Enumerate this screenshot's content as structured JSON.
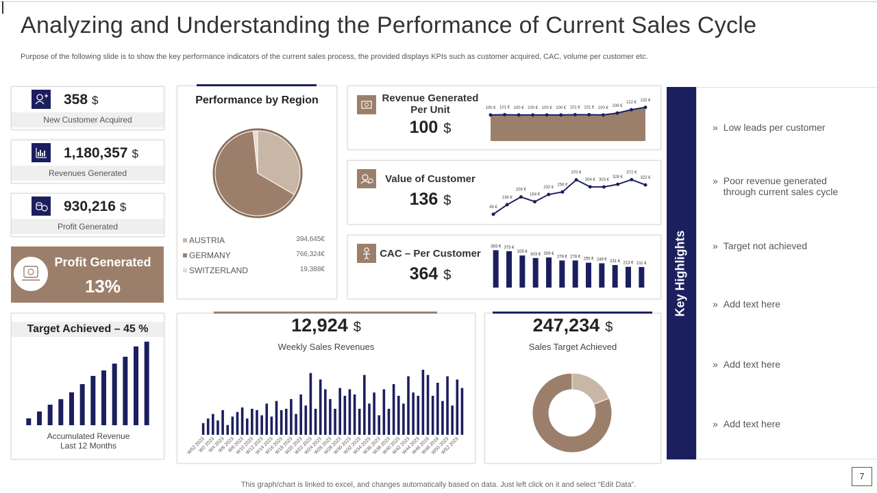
{
  "header": {
    "title": "Analyzing and Understanding the Performance of Current Sales Cycle",
    "subtitle": "Purpose of the following slide is to show the key performance indicators of the current sales process, the provided displays KPIs such as customer acquired, CAC, volume per customer etc."
  },
  "kpis": [
    {
      "value": "358",
      "unit": "$",
      "label": "New Customer Acquired"
    },
    {
      "value": "1,180,357",
      "unit": "$",
      "label": "Revenues  Generated"
    },
    {
      "value": "930,216",
      "unit": "$",
      "label": "Profit  Generated"
    }
  ],
  "profit_box": {
    "title": "Profit Generated",
    "value": "13%"
  },
  "target": {
    "title": "Target Achieved – 45 %",
    "type": "bar",
    "color": "#1b1f5e",
    "values": [
      10,
      20,
      30,
      38,
      48,
      60,
      72,
      80,
      90,
      100,
      115,
      122
    ],
    "ylim": [
      0,
      125
    ],
    "label": "Accumulated Revenue Last 12 Months"
  },
  "region": {
    "title": "Performance by Region",
    "type": "pie",
    "categories": [
      "AUSTRIA",
      "GERMANY",
      "SWITZERLAND"
    ],
    "values": [
      394645,
      766324,
      19388
    ],
    "value_labels": [
      "394,645€",
      "766,324€",
      "19,388€"
    ],
    "colors": [
      "#c8b6a6",
      "#9c7f6b",
      "#e4dbd3"
    ]
  },
  "revenue_unit": {
    "title": "Revenue Generated Per Unit",
    "value": "100",
    "unit": "$",
    "type": "area",
    "color": "#9c7f6b",
    "line_color": "#1b1f5e",
    "values": [
      100,
      101,
      100,
      100,
      100,
      100,
      101,
      101,
      100,
      108,
      122,
      132
    ],
    "value_labels": [
      "100 €",
      "101 €",
      "100 €",
      "100 €",
      "100 €",
      "100 €",
      "101 €",
      "101 €",
      "100 €",
      "108 €",
      "122 €",
      "132 €"
    ],
    "ylim": [
      -10,
      140
    ]
  },
  "customer_value": {
    "title": "Value of Customer",
    "value": "136",
    "unit": "$",
    "type": "line",
    "color": "#1b1f5e",
    "values": [
      46,
      136,
      209,
      164,
      232,
      256,
      370,
      304,
      303,
      328,
      372,
      322
    ],
    "value_labels": [
      "46 €",
      "136 €",
      "209 €",
      "164 €",
      "232 €",
      "256 €",
      "370 €",
      "304 €",
      "303 €",
      "328 €",
      "372 €",
      "322 €"
    ],
    "ylim": [
      0,
      400
    ]
  },
  "cac": {
    "title": "CAC – Per Customer",
    "value": "364",
    "unit": "$",
    "type": "bar",
    "color": "#1b1f5e",
    "values": [
      383,
      373,
      329,
      303,
      309,
      278,
      278,
      255,
      249,
      231,
      213,
      211
    ],
    "value_labels": [
      "383 €",
      "373 €",
      "329 €",
      "303 €",
      "309 €",
      "278 €",
      "278 €",
      "255 €",
      "249 €",
      "231 €",
      "213 €",
      "211 €"
    ],
    "ylim": [
      0,
      400
    ]
  },
  "weekly": {
    "value": "12,924",
    "unit": "$",
    "label": "Weekly Sales Revenues",
    "type": "bar",
    "color": "#1b1f5e",
    "ylim": [
      0,
      100
    ],
    "categories": [
      "W52 2023",
      null,
      "W2 2023",
      null,
      "W4 2023",
      null,
      "W6 2023",
      null,
      "W8 2023",
      null,
      "W10 2023",
      null,
      "W12 2023",
      null,
      "W14 2023",
      null,
      "W16 2023",
      null,
      "W18 2023",
      null,
      "W20 2023",
      null,
      "W22 2023",
      null,
      "W24 2023",
      null,
      "W26 2023",
      null,
      "W28 2023",
      null,
      "W30 2023",
      null,
      "W32 2023",
      null,
      "W34 2023",
      null,
      "W36 2023",
      null,
      "W38 2023",
      null,
      "W40 2023",
      null,
      "W42 2023",
      null,
      "W44 2023",
      null,
      "W46 2019",
      null,
      "W48 2019",
      null,
      "W50 2023",
      null,
      "W52 2023",
      null
    ],
    "values": [
      18,
      25,
      32,
      22,
      38,
      15,
      28,
      35,
      42,
      25,
      40,
      38,
      30,
      48,
      28,
      52,
      38,
      40,
      55,
      32,
      62,
      45,
      95,
      40,
      85,
      70,
      55,
      40,
      72,
      60,
      70,
      62,
      40,
      92,
      48,
      65,
      30,
      70,
      40,
      78,
      60,
      48,
      90,
      65,
      60,
      100,
      92,
      60,
      80,
      52,
      90,
      45,
      85,
      72
    ]
  },
  "sales_target": {
    "value": "247,234",
    "unit": "$",
    "label": "Sales Target Achieved",
    "type": "donut",
    "values": [
      19,
      81
    ],
    "colors": [
      "#c8b6a6",
      "#9c7f6b"
    ]
  },
  "highlights": {
    "title": "Key Highlights",
    "items": [
      "Low leads per customer",
      "Poor revenue generated through current sales cycle",
      "Target not achieved",
      "Add text here",
      "Add text here",
      "Add text here"
    ]
  },
  "footer": {
    "note": "This graph/chart is linked to excel,  and changes automatically based on data. Just left click on it and select “Edit Data”.",
    "page": "7"
  }
}
